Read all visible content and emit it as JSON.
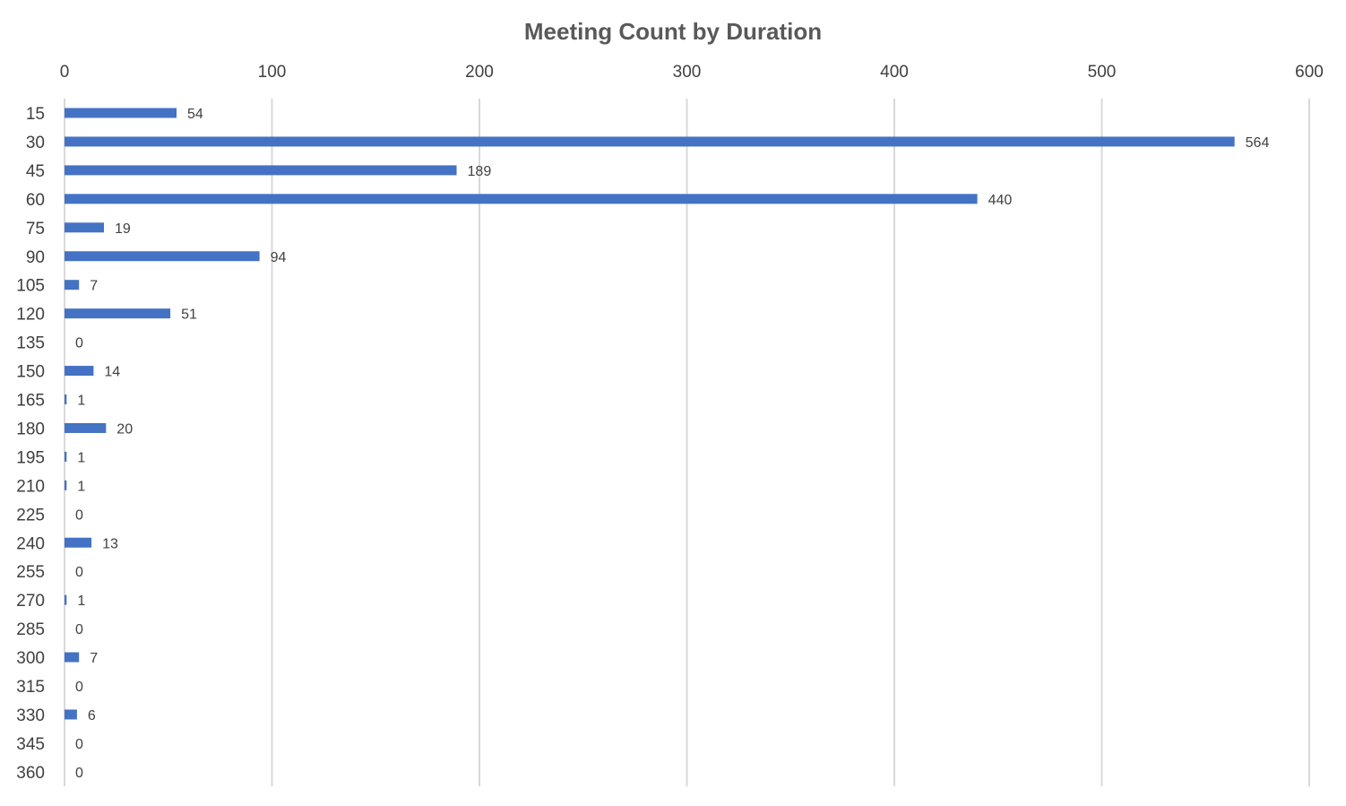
{
  "chart_data": {
    "type": "bar",
    "orientation": "horizontal",
    "title": "Meeting Count by Duration",
    "xlabel": "",
    "ylabel": "",
    "categories": [
      "15",
      "30",
      "45",
      "60",
      "75",
      "90",
      "105",
      "120",
      "135",
      "150",
      "165",
      "180",
      "195",
      "210",
      "225",
      "240",
      "255",
      "270",
      "285",
      "300",
      "315",
      "330",
      "345",
      "360"
    ],
    "values": [
      54,
      564,
      189,
      440,
      19,
      94,
      7,
      51,
      0,
      14,
      1,
      20,
      1,
      1,
      0,
      13,
      0,
      1,
      0,
      7,
      0,
      6,
      0,
      0
    ],
    "value_axis_range": [
      0,
      600
    ],
    "value_axis_ticks": [
      "0",
      "100",
      "200",
      "300",
      "400",
      "500",
      "600"
    ],
    "value_axis_position": "top",
    "data_labels": true,
    "grid": true,
    "legend": "none",
    "bar_color": "#4472c4"
  }
}
